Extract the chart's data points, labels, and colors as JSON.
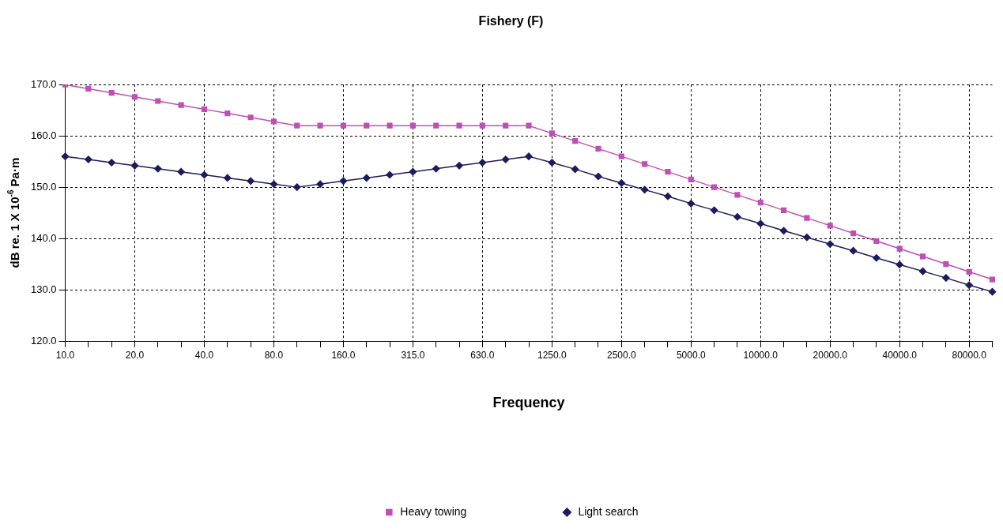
{
  "chart_data": {
    "type": "line",
    "title": "Fishery (F)",
    "xlabel": "Frequency",
    "ylabel": "dB re. 1 X 10$^{-6}$ Pa·m",
    "categories": [
      "10.0",
      null,
      null,
      "20.0",
      null,
      null,
      "40.0",
      null,
      null,
      "80.0",
      null,
      null,
      "160.0",
      null,
      null,
      "315.0",
      null,
      null,
      "630.0",
      null,
      null,
      "1250.0",
      null,
      null,
      "2500.0",
      null,
      null,
      "5000.0",
      null,
      null,
      "10000.0",
      null,
      null,
      "20000.0",
      null,
      null,
      "40000.0",
      null,
      null,
      "80000.0",
      null
    ],
    "series": [
      {
        "name": "Heavy towing",
        "color": "#c04fb4",
        "marker": "square",
        "values": [
          170,
          169.2,
          168.4,
          167.6,
          166.8,
          166,
          165.2,
          164.4,
          163.6,
          162.8,
          162,
          162,
          162,
          162,
          162,
          162,
          162,
          162,
          162,
          162,
          162,
          160.5,
          159,
          157.5,
          156,
          154.5,
          153,
          151.5,
          150,
          148.5,
          147,
          145.5,
          144,
          142.5,
          141,
          139.5,
          138,
          136.5,
          135,
          133.5,
          132
        ]
      },
      {
        "name": "Light search",
        "color": "#1c1c5c",
        "marker": "diamond",
        "values": [
          156,
          155.4,
          154.8,
          154.2,
          153.6,
          153,
          152.4,
          151.8,
          151.2,
          150.6,
          150,
          150.6,
          151.2,
          151.8,
          152.4,
          153,
          153.6,
          154.2,
          154.8,
          155.4,
          156,
          154.8,
          153.5,
          152.1,
          150.8,
          149.5,
          148.2,
          146.8,
          145.5,
          144.2,
          142.9,
          141.5,
          140.2,
          138.9,
          137.6,
          136.2,
          134.9,
          133.6,
          132.3,
          130.9,
          129.6
        ]
      }
    ],
    "ylim": [
      120,
      170
    ],
    "yticks": [
      {
        "value": 120,
        "label": "120.0"
      },
      {
        "value": 130,
        "label": "130.0"
      },
      {
        "value": 140,
        "label": "140.0"
      },
      {
        "value": 150,
        "label": "150.0"
      },
      {
        "value": 160,
        "label": "160.0"
      },
      {
        "value": 170,
        "label": "170.0"
      }
    ],
    "grid": true,
    "line_style": "solid",
    "legend": "bottom"
  }
}
